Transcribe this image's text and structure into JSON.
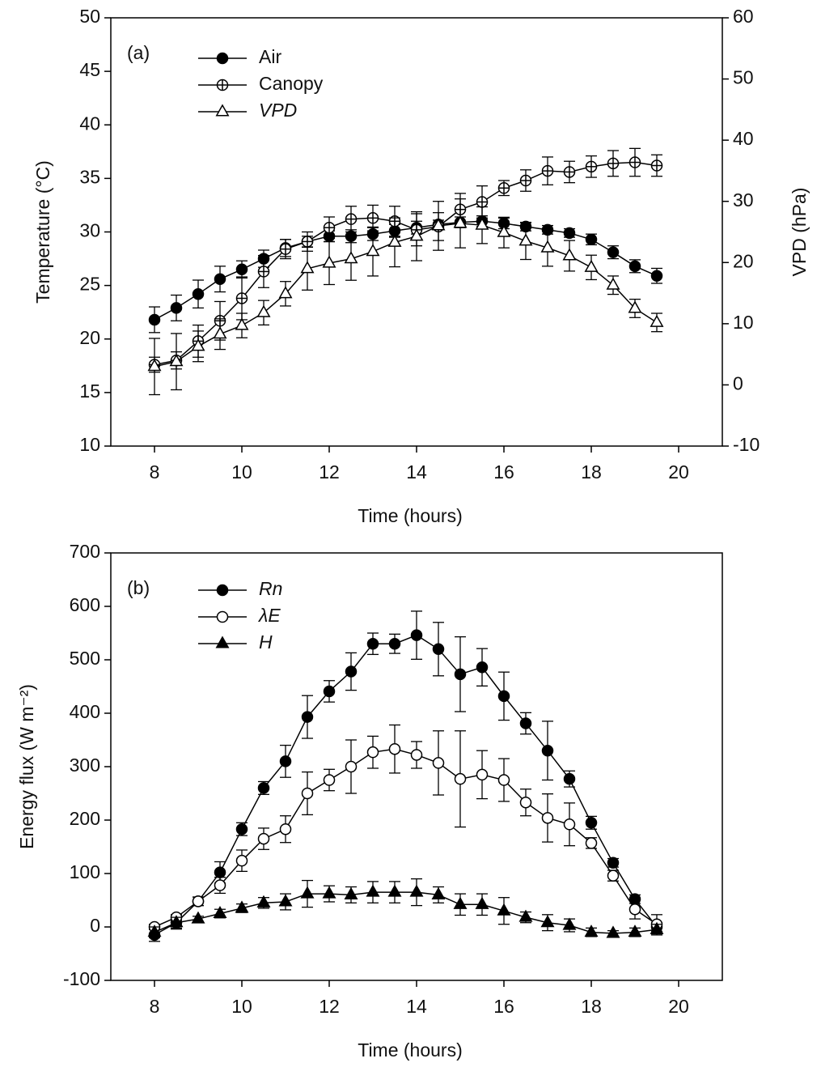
{
  "chart_data": [
    {
      "type": "line",
      "panel_label": "(a)",
      "xlabel": "Time (hours)",
      "ylabel": "Temperature (°C)",
      "y2label": "VPD (hPa)",
      "x": [
        8,
        8.5,
        9,
        9.5,
        10,
        10.5,
        11,
        11.5,
        12,
        12.5,
        13,
        13.5,
        14,
        14.5,
        15,
        15.5,
        16,
        16.5,
        17,
        17.5,
        18,
        18.5,
        19,
        19.5
      ],
      "xlim": [
        7,
        21
      ],
      "xticks": [
        8,
        10,
        12,
        14,
        16,
        18,
        20
      ],
      "ylim": [
        10,
        50
      ],
      "yticks": [
        10,
        15,
        20,
        25,
        30,
        35,
        40,
        45,
        50
      ],
      "y2lim": [
        -10,
        60
      ],
      "y2ticks": [
        -10,
        0,
        10,
        20,
        30,
        40,
        50,
        60
      ],
      "series": [
        {
          "name": "Air",
          "color": "#000000",
          "marker": "circle",
          "filled": true,
          "italic": false,
          "values": [
            21.8,
            22.9,
            24.2,
            25.6,
            26.5,
            27.5,
            28.5,
            29.1,
            29.6,
            29.6,
            29.8,
            30.1,
            30.4,
            30.7,
            30.9,
            31.0,
            30.8,
            30.5,
            30.2,
            29.9,
            29.3,
            28.1,
            26.8,
            25.9
          ],
          "errors": [
            1.2,
            1.2,
            1.3,
            1.2,
            0.8,
            0.8,
            0.8,
            0.5,
            0.5,
            0.6,
            0.6,
            0.6,
            0.6,
            0.4,
            0.5,
            0.5,
            0.5,
            0.4,
            0.4,
            0.4,
            0.5,
            0.6,
            0.6,
            0.7
          ]
        },
        {
          "name": "Canopy",
          "color": "#000000",
          "marker": "circle-plus",
          "filled": false,
          "italic": false,
          "values": [
            17.6,
            18.0,
            19.8,
            21.7,
            23.8,
            26.3,
            28.4,
            29.1,
            30.4,
            31.2,
            31.3,
            31.0,
            30.2,
            30.5,
            32.1,
            32.8,
            34.1,
            34.8,
            35.7,
            35.6,
            36.1,
            36.4,
            36.5,
            36.2
          ],
          "errors": [
            0.7,
            0.8,
            1.5,
            1.8,
            2.0,
            1.5,
            0.9,
            0.9,
            1.0,
            1.2,
            1.2,
            1.4,
            1.5,
            1.3,
            1.5,
            1.5,
            0.7,
            1.0,
            1.3,
            1.0,
            1.0,
            1.2,
            1.3,
            1.0
          ]
        },
        {
          "name": "VPD",
          "color": "#000000",
          "marker": "triangle",
          "filled": false,
          "italic": true,
          "axis": "y2",
          "values": [
            3.0,
            3.8,
            6.3,
            8.3,
            9.7,
            11.8,
            14.9,
            19.0,
            19.9,
            20.6,
            21.8,
            23.3,
            24.3,
            26.0,
            26.4,
            26.1,
            24.9,
            23.5,
            22.4,
            21.1,
            19.2,
            16.3,
            12.5,
            10.2
          ],
          "errors": [
            4.6,
            4.6,
            2.5,
            2.5,
            2.0,
            2.0,
            2.0,
            3.5,
            3.5,
            3.5,
            4.0,
            4.0,
            4.0,
            4.0,
            4.0,
            3.0,
            2.5,
            3.0,
            3.0,
            2.5,
            2.0,
            1.5,
            1.5,
            1.5
          ]
        }
      ]
    },
    {
      "type": "line",
      "panel_label": "(b)",
      "xlabel": "Time (hours)",
      "ylabel": "Energy flux (W m⁻²)",
      "x": [
        8,
        8.5,
        9,
        9.5,
        10,
        10.5,
        11,
        11.5,
        12,
        12.5,
        13,
        13.5,
        14,
        14.5,
        15,
        15.5,
        16,
        16.5,
        17,
        17.5,
        18,
        18.5,
        19,
        19.5
      ],
      "xlim": [
        7,
        21
      ],
      "xticks": [
        8,
        10,
        12,
        14,
        16,
        18,
        20
      ],
      "ylim": [
        -100,
        700
      ],
      "yticks": [
        -100,
        0,
        100,
        200,
        300,
        400,
        500,
        600,
        700
      ],
      "series": [
        {
          "name": "Rn",
          "color": "#000000",
          "marker": "circle",
          "filled": true,
          "italic": true,
          "values": [
            -15,
            8,
            48,
            102,
            183,
            260,
            310,
            393,
            441,
            478,
            530,
            530,
            546,
            520,
            473,
            486,
            432,
            381,
            330,
            277,
            195,
            120,
            52,
            0
          ],
          "errors": [
            12,
            12,
            8,
            20,
            12,
            12,
            30,
            40,
            20,
            35,
            20,
            18,
            45,
            50,
            70,
            35,
            45,
            20,
            55,
            15,
            12,
            8,
            8,
            8
          ]
        },
        {
          "name": "λE",
          "color": "#000000",
          "marker": "circle",
          "filled": false,
          "italic": true,
          "values": [
            0,
            18,
            48,
            78,
            124,
            165,
            183,
            250,
            275,
            300,
            327,
            333,
            322,
            307,
            277,
            285,
            275,
            233,
            204,
            192,
            157,
            96,
            33,
            5
          ],
          "errors": [
            5,
            5,
            8,
            15,
            20,
            20,
            25,
            40,
            20,
            50,
            30,
            45,
            25,
            60,
            90,
            45,
            40,
            25,
            45,
            40,
            10,
            10,
            18,
            18
          ]
        },
        {
          "name": "H",
          "color": "#000000",
          "marker": "triangle",
          "filled": true,
          "italic": true,
          "values": [
            -10,
            8,
            15,
            25,
            35,
            45,
            47,
            62,
            62,
            60,
            65,
            65,
            65,
            60,
            42,
            42,
            30,
            18,
            8,
            3,
            -10,
            -12,
            -10,
            -5
          ],
          "errors": [
            10,
            10,
            5,
            8,
            8,
            10,
            15,
            25,
            15,
            15,
            20,
            20,
            25,
            15,
            20,
            20,
            25,
            10,
            15,
            12,
            8,
            5,
            8,
            10
          ]
        }
      ]
    }
  ]
}
